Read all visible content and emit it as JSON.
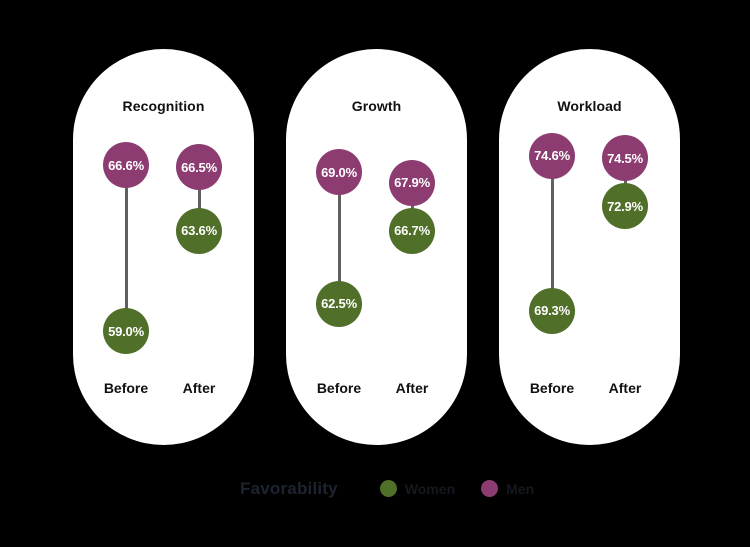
{
  "page": {
    "background": "#000000"
  },
  "chart_data": {
    "type": "scatter",
    "variant": "dumbbell",
    "value_suffix": "%",
    "grid": false,
    "legend_position": "bottom-center",
    "colors": {
      "panel_background": "#ffffff",
      "connector_line": "#606060",
      "panel_title_text": "#111111",
      "axis_label_text": "#111111",
      "value_text": "#ffffff",
      "legend_title_text": "#1d2430",
      "legend_label_text": "#14181f"
    },
    "panels": [
      {
        "title": "Recognition",
        "ylim": [
          58.6,
          67.3
        ],
        "columns": [
          {
            "label": "Before",
            "points": [
              {
                "series": "Men",
                "value": 66.6
              },
              {
                "series": "Women",
                "value": 59.0
              }
            ]
          },
          {
            "label": "After",
            "points": [
              {
                "series": "Men",
                "value": 66.5
              },
              {
                "series": "Women",
                "value": 63.6
              }
            ]
          }
        ]
      },
      {
        "title": "Growth",
        "ylim": [
          60.7,
          70.1
        ],
        "columns": [
          {
            "label": "Before",
            "points": [
              {
                "series": "Men",
                "value": 69.0
              },
              {
                "series": "Women",
                "value": 62.5
              }
            ]
          },
          {
            "label": "After",
            "points": [
              {
                "series": "Men",
                "value": 67.9
              },
              {
                "series": "Women",
                "value": 66.7
              }
            ]
          }
        ]
      },
      {
        "title": "Workload",
        "ylim": [
          68.3,
          74.8
        ],
        "columns": [
          {
            "label": "Before",
            "points": [
              {
                "series": "Men",
                "value": 74.6
              },
              {
                "series": "Women",
                "value": 69.3
              }
            ]
          },
          {
            "label": "After",
            "points": [
              {
                "series": "Men",
                "value": 74.5
              },
              {
                "series": "Women",
                "value": 72.9
              }
            ]
          }
        ]
      }
    ],
    "legend": {
      "title": "Favorability",
      "entries": [
        {
          "label": "Women",
          "color": "#506f29"
        },
        {
          "label": "Men",
          "color": "#8d3c72"
        }
      ]
    }
  }
}
